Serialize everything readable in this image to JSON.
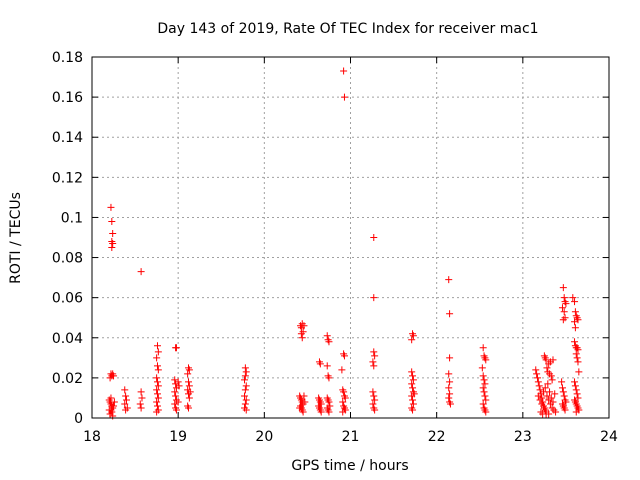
{
  "chart_data": {
    "type": "scatter",
    "title": "Day 143 of 2019, Rate Of TEC Index for receiver mac1",
    "xlabel": "GPS time / hours",
    "ylabel": "ROTI / TECUs",
    "xlim": [
      18,
      24
    ],
    "ylim": [
      0,
      0.18
    ],
    "xticks": [
      18,
      19,
      20,
      21,
      22,
      23,
      24
    ],
    "xtick_labels": [
      "18",
      "19",
      "20",
      "21",
      "22",
      "23",
      "24"
    ],
    "yticks": [
      0,
      0.02,
      0.04,
      0.06,
      0.08,
      0.1,
      0.12,
      0.14,
      0.16,
      0.18
    ],
    "ytick_labels": [
      "0",
      "0.02",
      "0.04",
      "0.06",
      "0.08",
      "0.1",
      "0.12",
      "0.14",
      "0.16",
      "0.18"
    ],
    "grid": true,
    "marker": "+",
    "color": "#ff0000",
    "series": [
      {
        "name": "ROTI",
        "points": [
          [
            18.22,
            0.105
          ],
          [
            18.23,
            0.098
          ],
          [
            18.24,
            0.092
          ],
          [
            18.23,
            0.088
          ],
          [
            18.24,
            0.087
          ],
          [
            18.23,
            0.085
          ],
          [
            18.22,
            0.022
          ],
          [
            18.23,
            0.021
          ],
          [
            18.24,
            0.022
          ],
          [
            18.21,
            0.02
          ],
          [
            18.25,
            0.021
          ],
          [
            18.2,
            0.009
          ],
          [
            18.21,
            0.008
          ],
          [
            18.22,
            0.007
          ],
          [
            18.23,
            0.006
          ],
          [
            18.24,
            0.005
          ],
          [
            18.22,
            0.004
          ],
          [
            18.23,
            0.003
          ],
          [
            18.21,
            0.002
          ],
          [
            18.24,
            0.001
          ],
          [
            18.25,
            0.006
          ],
          [
            18.2,
            0.004
          ],
          [
            18.22,
            0.01
          ],
          [
            18.26,
            0.008
          ],
          [
            18.38,
            0.014
          ],
          [
            18.39,
            0.011
          ],
          [
            18.4,
            0.009
          ],
          [
            18.38,
            0.007
          ],
          [
            18.41,
            0.005
          ],
          [
            18.39,
            0.004
          ],
          [
            18.57,
            0.073
          ],
          [
            18.57,
            0.013
          ],
          [
            18.58,
            0.01
          ],
          [
            18.56,
            0.007
          ],
          [
            18.57,
            0.005
          ],
          [
            18.76,
            0.036
          ],
          [
            18.77,
            0.033
          ],
          [
            18.75,
            0.03
          ],
          [
            18.76,
            0.026
          ],
          [
            18.77,
            0.024
          ],
          [
            18.75,
            0.02
          ],
          [
            18.76,
            0.018
          ],
          [
            18.77,
            0.016
          ],
          [
            18.75,
            0.014
          ],
          [
            18.76,
            0.012
          ],
          [
            18.77,
            0.01
          ],
          [
            18.75,
            0.008
          ],
          [
            18.76,
            0.006
          ],
          [
            18.77,
            0.004
          ],
          [
            18.75,
            0.003
          ],
          [
            18.97,
            0.035
          ],
          [
            18.98,
            0.035
          ],
          [
            18.96,
            0.019
          ],
          [
            18.97,
            0.017
          ],
          [
            18.98,
            0.015
          ],
          [
            18.96,
            0.013
          ],
          [
            18.97,
            0.011
          ],
          [
            18.98,
            0.009
          ],
          [
            18.96,
            0.007
          ],
          [
            18.97,
            0.005
          ],
          [
            18.98,
            0.004
          ],
          [
            19.0,
            0.018
          ],
          [
            19.01,
            0.016
          ],
          [
            19.0,
            0.008
          ],
          [
            19.12,
            0.025
          ],
          [
            19.13,
            0.024
          ],
          [
            19.11,
            0.022
          ],
          [
            19.12,
            0.018
          ],
          [
            19.13,
            0.016
          ],
          [
            19.11,
            0.014
          ],
          [
            19.12,
            0.012
          ],
          [
            19.13,
            0.01
          ],
          [
            19.11,
            0.006
          ],
          [
            19.12,
            0.005
          ],
          [
            19.14,
            0.013
          ],
          [
            19.78,
            0.025
          ],
          [
            19.79,
            0.023
          ],
          [
            19.78,
            0.021
          ],
          [
            19.77,
            0.019
          ],
          [
            19.79,
            0.016
          ],
          [
            19.78,
            0.014
          ],
          [
            19.77,
            0.011
          ],
          [
            19.79,
            0.009
          ],
          [
            19.78,
            0.007
          ],
          [
            19.77,
            0.005
          ],
          [
            19.79,
            0.004
          ],
          [
            20.42,
            0.046
          ],
          [
            20.43,
            0.045
          ],
          [
            20.44,
            0.047
          ],
          [
            20.45,
            0.043
          ],
          [
            20.43,
            0.042
          ],
          [
            20.44,
            0.04
          ],
          [
            20.46,
            0.046
          ],
          [
            20.41,
            0.011
          ],
          [
            20.42,
            0.01
          ],
          [
            20.43,
            0.009
          ],
          [
            20.44,
            0.008
          ],
          [
            20.45,
            0.007
          ],
          [
            20.42,
            0.006
          ],
          [
            20.43,
            0.005
          ],
          [
            20.44,
            0.004
          ],
          [
            20.45,
            0.003
          ],
          [
            20.46,
            0.011
          ],
          [
            20.47,
            0.008
          ],
          [
            20.41,
            0.005
          ],
          [
            20.64,
            0.028
          ],
          [
            20.65,
            0.027
          ],
          [
            20.63,
            0.01
          ],
          [
            20.64,
            0.009
          ],
          [
            20.65,
            0.008
          ],
          [
            20.66,
            0.007
          ],
          [
            20.63,
            0.006
          ],
          [
            20.64,
            0.005
          ],
          [
            20.65,
            0.004
          ],
          [
            20.66,
            0.003
          ],
          [
            20.73,
            0.041
          ],
          [
            20.74,
            0.039
          ],
          [
            20.75,
            0.038
          ],
          [
            20.73,
            0.026
          ],
          [
            20.74,
            0.021
          ],
          [
            20.75,
            0.02
          ],
          [
            20.73,
            0.01
          ],
          [
            20.74,
            0.009
          ],
          [
            20.75,
            0.008
          ],
          [
            20.76,
            0.006
          ],
          [
            20.73,
            0.005
          ],
          [
            20.74,
            0.004
          ],
          [
            20.75,
            0.003
          ],
          [
            20.92,
            0.173
          ],
          [
            20.93,
            0.16
          ],
          [
            20.92,
            0.032
          ],
          [
            20.93,
            0.031
          ],
          [
            20.9,
            0.024
          ],
          [
            20.91,
            0.014
          ],
          [
            20.92,
            0.013
          ],
          [
            20.93,
            0.011
          ],
          [
            20.94,
            0.01
          ],
          [
            20.91,
            0.008
          ],
          [
            20.92,
            0.006
          ],
          [
            20.93,
            0.005
          ],
          [
            20.94,
            0.004
          ],
          [
            20.91,
            0.003
          ],
          [
            21.27,
            0.09
          ],
          [
            21.27,
            0.06
          ],
          [
            21.27,
            0.033
          ],
          [
            21.28,
            0.031
          ],
          [
            21.26,
            0.028
          ],
          [
            21.27,
            0.026
          ],
          [
            21.26,
            0.013
          ],
          [
            21.27,
            0.011
          ],
          [
            21.28,
            0.009
          ],
          [
            21.26,
            0.007
          ],
          [
            21.27,
            0.005
          ],
          [
            21.28,
            0.004
          ],
          [
            21.72,
            0.042
          ],
          [
            21.73,
            0.041
          ],
          [
            21.71,
            0.039
          ],
          [
            21.71,
            0.023
          ],
          [
            21.72,
            0.021
          ],
          [
            21.73,
            0.019
          ],
          [
            21.71,
            0.017
          ],
          [
            21.72,
            0.015
          ],
          [
            21.73,
            0.013
          ],
          [
            21.71,
            0.011
          ],
          [
            21.72,
            0.009
          ],
          [
            21.73,
            0.007
          ],
          [
            21.71,
            0.005
          ],
          [
            21.72,
            0.004
          ],
          [
            21.74,
            0.012
          ],
          [
            22.14,
            0.069
          ],
          [
            22.15,
            0.052
          ],
          [
            22.15,
            0.03
          ],
          [
            22.14,
            0.022
          ],
          [
            22.15,
            0.018
          ],
          [
            22.14,
            0.015
          ],
          [
            22.15,
            0.012
          ],
          [
            22.14,
            0.01
          ],
          [
            22.15,
            0.008
          ],
          [
            22.16,
            0.007
          ],
          [
            22.54,
            0.035
          ],
          [
            22.55,
            0.031
          ],
          [
            22.56,
            0.03
          ],
          [
            22.57,
            0.029
          ],
          [
            22.53,
            0.025
          ],
          [
            22.54,
            0.021
          ],
          [
            22.55,
            0.019
          ],
          [
            22.56,
            0.017
          ],
          [
            22.54,
            0.015
          ],
          [
            22.55,
            0.013
          ],
          [
            22.56,
            0.011
          ],
          [
            22.57,
            0.009
          ],
          [
            22.54,
            0.007
          ],
          [
            22.55,
            0.005
          ],
          [
            22.56,
            0.004
          ],
          [
            22.57,
            0.003
          ],
          [
            23.15,
            0.024
          ],
          [
            23.16,
            0.022
          ],
          [
            23.17,
            0.02
          ],
          [
            23.18,
            0.018
          ],
          [
            23.19,
            0.016
          ],
          [
            23.2,
            0.014
          ],
          [
            23.21,
            0.012
          ],
          [
            23.22,
            0.01
          ],
          [
            23.23,
            0.008
          ],
          [
            23.24,
            0.006
          ],
          [
            23.25,
            0.005
          ],
          [
            23.26,
            0.004
          ],
          [
            23.27,
            0.003
          ],
          [
            23.25,
            0.031
          ],
          [
            23.26,
            0.03
          ],
          [
            23.27,
            0.029
          ],
          [
            23.3,
            0.027
          ],
          [
            23.32,
            0.028
          ],
          [
            23.35,
            0.029
          ],
          [
            23.28,
            0.025
          ],
          [
            23.29,
            0.023
          ],
          [
            23.31,
            0.022
          ],
          [
            23.33,
            0.021
          ],
          [
            23.34,
            0.019
          ],
          [
            23.18,
            0.011
          ],
          [
            23.2,
            0.009
          ],
          [
            23.22,
            0.007
          ],
          [
            23.24,
            0.013
          ],
          [
            23.26,
            0.015
          ],
          [
            23.28,
            0.011
          ],
          [
            23.3,
            0.009
          ],
          [
            23.32,
            0.007
          ],
          [
            23.34,
            0.005
          ],
          [
            23.36,
            0.004
          ],
          [
            23.38,
            0.003
          ],
          [
            23.29,
            0.017
          ],
          [
            23.31,
            0.013
          ],
          [
            23.33,
            0.01
          ],
          [
            23.35,
            0.008
          ],
          [
            23.37,
            0.012
          ],
          [
            23.21,
            0.003
          ],
          [
            23.23,
            0.002
          ],
          [
            23.27,
            0.002
          ],
          [
            23.3,
            0.002
          ],
          [
            23.47,
            0.065
          ],
          [
            23.48,
            0.06
          ],
          [
            23.49,
            0.058
          ],
          [
            23.5,
            0.057
          ],
          [
            23.46,
            0.055
          ],
          [
            23.48,
            0.053
          ],
          [
            23.49,
            0.05
          ],
          [
            23.47,
            0.049
          ],
          [
            23.45,
            0.018
          ],
          [
            23.46,
            0.015
          ],
          [
            23.47,
            0.013
          ],
          [
            23.48,
            0.011
          ],
          [
            23.49,
            0.009
          ],
          [
            23.46,
            0.007
          ],
          [
            23.47,
            0.006
          ],
          [
            23.48,
            0.005
          ],
          [
            23.49,
            0.004
          ],
          [
            23.5,
            0.008
          ],
          [
            23.58,
            0.06
          ],
          [
            23.6,
            0.058
          ],
          [
            23.61,
            0.053
          ],
          [
            23.62,
            0.051
          ],
          [
            23.63,
            0.05
          ],
          [
            23.64,
            0.049
          ],
          [
            23.6,
            0.048
          ],
          [
            23.61,
            0.045
          ],
          [
            23.6,
            0.038
          ],
          [
            23.61,
            0.036
          ],
          [
            23.62,
            0.035
          ],
          [
            23.63,
            0.035
          ],
          [
            23.64,
            0.034
          ],
          [
            23.62,
            0.032
          ],
          [
            23.63,
            0.03
          ],
          [
            23.64,
            0.028
          ],
          [
            23.65,
            0.023
          ],
          [
            23.6,
            0.018
          ],
          [
            23.61,
            0.016
          ],
          [
            23.62,
            0.014
          ],
          [
            23.63,
            0.012
          ],
          [
            23.64,
            0.01
          ],
          [
            23.6,
            0.009
          ],
          [
            23.61,
            0.008
          ],
          [
            23.62,
            0.007
          ],
          [
            23.63,
            0.006
          ],
          [
            23.64,
            0.005
          ],
          [
            23.65,
            0.004
          ],
          [
            23.62,
            0.003
          ]
        ]
      }
    ]
  }
}
